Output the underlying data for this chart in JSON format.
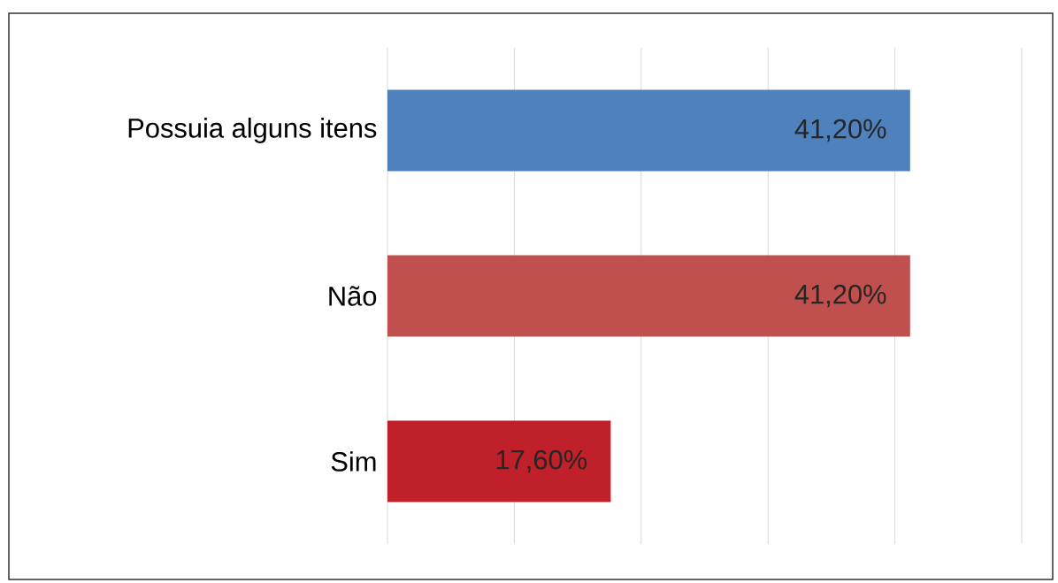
{
  "chart_data": {
    "type": "bar",
    "orientation": "horizontal",
    "categories": [
      "Possuia alguns itens",
      "Não",
      "Sim"
    ],
    "values": [
      41.2,
      41.2,
      17.6
    ],
    "colors": [
      "#4f81bd",
      "#c0504d",
      "#c0202a"
    ],
    "value_labels": [
      "41,20%",
      "41,20%",
      "17,60%"
    ],
    "xlim": [
      0,
      50
    ],
    "xticks": [
      {
        "value": 0,
        "label": null
      },
      {
        "value": 10,
        "label": null
      },
      {
        "value": 20,
        "label": null
      },
      {
        "value": 30,
        "label": null
      },
      {
        "value": 40,
        "label": null
      },
      {
        "value": 50,
        "label": null
      }
    ],
    "grid": "x",
    "tick_labels": "y"
  }
}
